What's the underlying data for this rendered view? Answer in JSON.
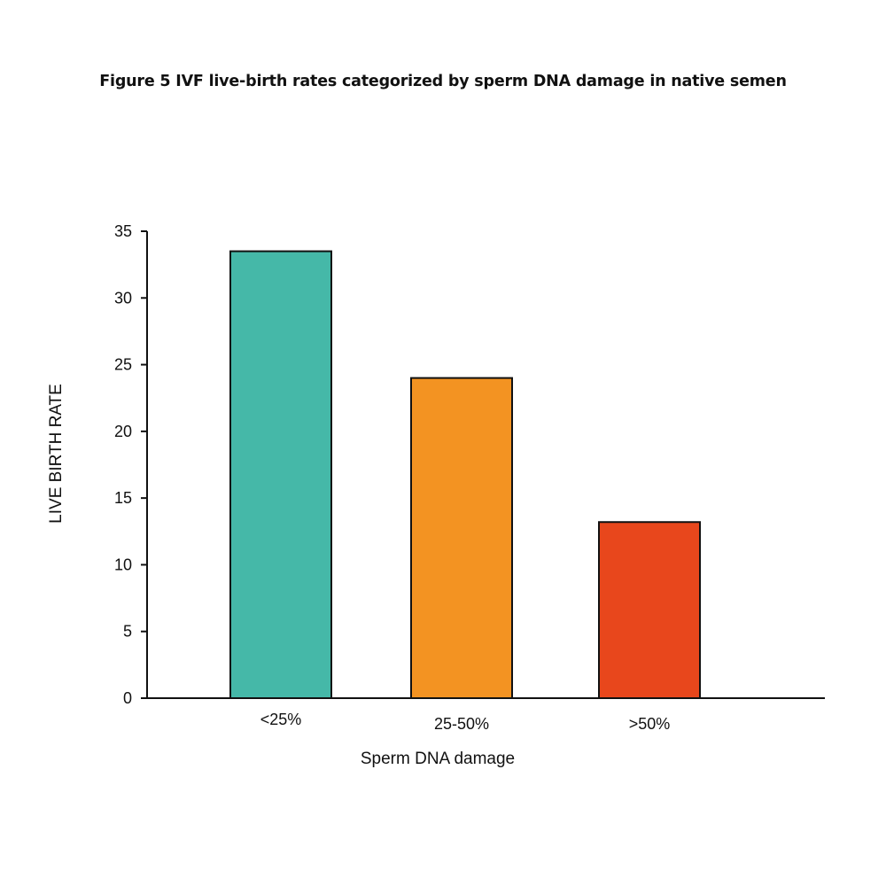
{
  "chart_data": {
    "type": "bar",
    "title": "Figure 5 IVF live-birth rates categorized by sperm DNA damage in native semen",
    "xlabel": "Sperm DNA damage",
    "ylabel": "LIVE BIRTH RATE",
    "categories": [
      "<25%",
      "25-50%",
      ">50%"
    ],
    "values": [
      33.5,
      24.0,
      13.2
    ],
    "ylim": [
      0,
      35
    ],
    "yticks": [
      0,
      5,
      10,
      15,
      20,
      25,
      30,
      35
    ],
    "grid": false,
    "legend": "none",
    "colors": [
      "#45b8a8",
      "#f39322",
      "#e8471c"
    ]
  }
}
